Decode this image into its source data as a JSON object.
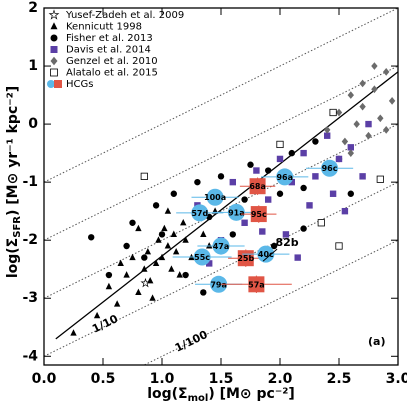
{
  "chart_data": {
    "type": "scatter",
    "x_label": {
      "prefix": "log(Σ",
      "sub": "mol",
      "suffix": ") [M⊙ pc⁻²]"
    },
    "y_label": {
      "prefix": "log(Σ",
      "sub": "SFR",
      "suffix": ") [M⊙ yr⁻¹ kpc⁻²]"
    },
    "xlim": [
      0,
      3.0
    ],
    "ylim": [
      -4.15,
      2.0
    ],
    "xticks": [
      {
        "value": 0,
        "label": "0.0"
      },
      0.5,
      {
        "value": 1,
        "label": "1.0"
      },
      1.5,
      {
        "value": 2,
        "label": "2.0"
      },
      2.5,
      {
        "value": 3,
        "label": "3.0"
      }
    ],
    "yticks": [
      -4,
      -3,
      -2,
      -1,
      0,
      1,
      2
    ],
    "legend": "upper left",
    "fit_line": {
      "x": [
        0.1,
        3.0
      ],
      "y": [
        -3.7,
        0.9
      ],
      "color": "#000000"
    },
    "depletion_lines": {
      "offsets": [
        -1,
        -2,
        -3,
        -4,
        -5
      ],
      "color": "#555555"
    },
    "annotations": [
      {
        "text": "1/10",
        "x": 0.52,
        "y": -3.45
      },
      {
        "text": "1/100",
        "x": 1.25,
        "y": -3.75
      },
      {
        "text": "(a)",
        "x": 2.82,
        "y": -3.75
      },
      {
        "text": "82b",
        "x": 2.06,
        "y": -2.05
      }
    ],
    "series": [
      {
        "name": "Yusef-Zadeh et al. 2009",
        "marker": "star",
        "color": "#ffffff",
        "x": [
          0.86
        ],
        "values": [
          -2.74
        ]
      },
      {
        "name": "Kennicutt 1998",
        "marker": "triangle",
        "color": "#000000",
        "x": [
          0.25,
          0.45,
          0.55,
          0.62,
          0.7,
          0.75,
          0.8,
          0.85,
          0.88,
          0.9,
          0.95,
          0.97,
          1.0,
          1.02,
          1.05,
          1.08,
          1.1,
          1.12,
          1.15,
          1.18,
          1.2,
          1.25,
          1.3,
          1.35,
          1.4,
          1.45,
          0.65,
          0.8,
          1.05,
          0.92
        ],
        "values": [
          -3.6,
          -3.3,
          -2.8,
          -3.1,
          -2.6,
          -2.3,
          -2.9,
          -2.5,
          -2.2,
          -2.7,
          -2.4,
          -2.0,
          -2.3,
          -1.8,
          -2.1,
          -2.5,
          -1.9,
          -2.2,
          -2.6,
          -1.7,
          -2.0,
          -2.3,
          -1.6,
          -1.9,
          -2.1,
          -1.5,
          -2.4,
          -1.8,
          -1.5,
          -3.0
        ]
      },
      {
        "name": "Fisher et al. 2013",
        "marker": "circle",
        "color": "#000000",
        "x": [
          0.4,
          0.55,
          0.7,
          0.75,
          0.85,
          0.95,
          1.0,
          1.1,
          1.2,
          1.3,
          1.4,
          1.5,
          1.6,
          1.7,
          1.75,
          1.85,
          1.9,
          2.0,
          2.1,
          2.2,
          2.3,
          2.5,
          2.6,
          1.35,
          2.2,
          1.95
        ],
        "values": [
          -1.95,
          -2.6,
          -2.1,
          -1.7,
          -2.3,
          -1.4,
          -1.9,
          -1.2,
          -2.6,
          -1.0,
          -1.6,
          -0.9,
          -1.9,
          -1.3,
          -0.7,
          -1.6,
          -0.8,
          -1.2,
          -0.5,
          -1.8,
          -0.3,
          -0.6,
          -1.2,
          -2.9,
          -1.1,
          -2.1
        ]
      },
      {
        "name": "Davis et al. 2014",
        "marker": "square",
        "color": "#5b3fa6",
        "x": [
          1.3,
          1.5,
          1.6,
          1.7,
          1.8,
          1.9,
          2.0,
          2.05,
          2.1,
          2.2,
          2.25,
          2.3,
          2.4,
          2.45,
          2.5,
          2.6,
          2.7,
          2.75,
          1.4,
          2.15,
          1.85,
          2.55
        ],
        "values": [
          -1.4,
          -2.0,
          -1.0,
          -1.7,
          -0.8,
          -1.3,
          -0.6,
          -1.9,
          -1.0,
          -0.5,
          -1.4,
          -0.9,
          -0.2,
          -1.2,
          -0.6,
          -0.4,
          -0.9,
          0.0,
          -2.4,
          -2.3,
          -1.85,
          -1.5
        ]
      },
      {
        "name": "Genzel et al. 2010",
        "marker": "diamond",
        "color": "#6b6b6b",
        "x": [
          2.4,
          2.5,
          2.55,
          2.6,
          2.65,
          2.7,
          2.75,
          2.8,
          2.85,
          2.9,
          2.95,
          2.6,
          2.8,
          2.9,
          2.7
        ],
        "values": [
          -0.1,
          0.2,
          -0.3,
          0.5,
          0.0,
          0.3,
          -0.2,
          0.6,
          0.1,
          0.9,
          0.4,
          -0.5,
          1.0,
          -0.1,
          0.7
        ]
      },
      {
        "name": "Alatalo et al. 2015",
        "marker": "open-square",
        "color": "#ffffff",
        "x": [
          0.85,
          2.45,
          2.85,
          2.5,
          2.0,
          2.35
        ],
        "values": [
          -0.9,
          0.2,
          -0.95,
          -2.1,
          -0.35,
          -1.7
        ]
      },
      {
        "name": "HCGs",
        "marker": "circle",
        "color": "#5bb8e8",
        "highlight_color": "#e05545",
        "labels": [
          "96c",
          "96a",
          "68a",
          "100a",
          "91a",
          "57d",
          "95c",
          "47a",
          "55c",
          "25b",
          "40c",
          "79a",
          "57a"
        ],
        "x": [
          2.42,
          2.04,
          1.81,
          1.45,
          1.63,
          1.32,
          1.82,
          1.5,
          1.34,
          1.71,
          1.88,
          1.48,
          1.8
        ],
        "values": [
          -0.76,
          -0.91,
          -1.07,
          -1.26,
          -1.52,
          -1.53,
          -1.55,
          -2.1,
          -2.29,
          -2.31,
          -2.24,
          -2.76,
          -2.76
        ],
        "xerr": [
          0.2,
          0.2,
          0.15,
          0.2,
          0.2,
          0.2,
          0.15,
          0.2,
          0.25,
          0.15,
          0.2,
          0.2,
          0.3
        ],
        "yerr": [
          0.1,
          0.12,
          0.15,
          0.12,
          0.12,
          0.12,
          0.15,
          0.15,
          0.12,
          0.15,
          0.12,
          0.12,
          0.15
        ],
        "highlight": [
          false,
          false,
          true,
          false,
          false,
          false,
          true,
          false,
          false,
          true,
          false,
          false,
          true
        ]
      }
    ]
  }
}
